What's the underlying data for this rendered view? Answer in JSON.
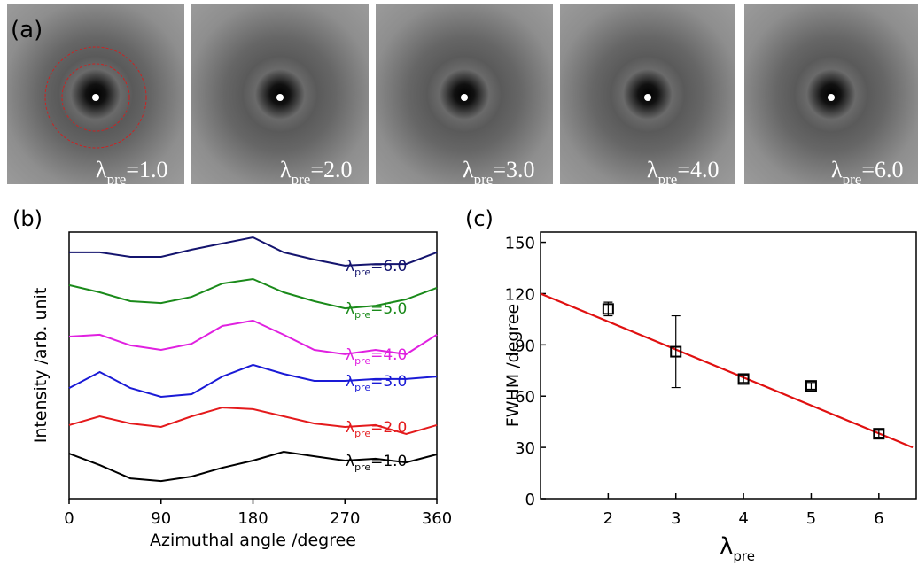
{
  "chart_data": [
    {
      "type": "image-grid",
      "panel_label": "(a)",
      "images": [
        {
          "label_parts": [
            "λ",
            "pre",
            "=1.0"
          ]
        },
        {
          "label_parts": [
            "λ",
            "pre",
            "=2.0"
          ]
        },
        {
          "label_parts": [
            "λ",
            "pre",
            "=3.0"
          ]
        },
        {
          "label_parts": [
            "λ",
            "pre",
            "=4.0"
          ]
        },
        {
          "label_parts": [
            "λ",
            "pre",
            "=6.0"
          ]
        }
      ]
    },
    {
      "type": "line",
      "panel_label": "(b)",
      "xlabel": "Azimuthal angle /degree",
      "ylabel": "Intensity /arb. unit",
      "x": [
        0,
        30,
        60,
        90,
        120,
        150,
        180,
        210,
        240,
        270,
        300,
        330,
        360
      ],
      "xlim": [
        0,
        360
      ],
      "xticks": [
        0,
        90,
        180,
        270,
        360
      ],
      "ylim": [
        0,
        10
      ],
      "series": [
        {
          "label_parts": [
            "λ",
            "pre",
            "=1.0"
          ],
          "color": "#000000",
          "values": [
            1.69,
            1.26,
            0.76,
            0.66,
            0.83,
            1.16,
            1.43,
            1.76,
            1.59,
            1.43,
            1.5,
            1.36,
            1.66
          ]
        },
        {
          "label_parts": [
            "λ",
            "pre",
            "=2.0"
          ],
          "color": "#e41a1c",
          "values": [
            2.76,
            3.09,
            2.82,
            2.69,
            3.09,
            3.42,
            3.36,
            3.09,
            2.82,
            2.69,
            2.76,
            2.43,
            2.76
          ]
        },
        {
          "label_parts": [
            "λ",
            "pre",
            "=3.0"
          ],
          "color": "#1a1ad6",
          "values": [
            4.15,
            4.75,
            4.15,
            3.82,
            3.92,
            4.58,
            5.02,
            4.68,
            4.42,
            4.42,
            4.49,
            4.49,
            4.58
          ]
        },
        {
          "label_parts": [
            "λ",
            "pre",
            "=4.0"
          ],
          "color": "#e020e0",
          "values": [
            6.08,
            6.15,
            5.75,
            5.58,
            5.81,
            6.48,
            6.68,
            6.15,
            5.58,
            5.42,
            5.58,
            5.42,
            6.15
          ]
        },
        {
          "label_parts": [
            "λ",
            "pre",
            "=5.0"
          ],
          "color": "#1a8a1a",
          "values": [
            8.01,
            7.74,
            7.41,
            7.34,
            7.57,
            8.07,
            8.24,
            7.74,
            7.41,
            7.14,
            7.24,
            7.48,
            7.91
          ]
        },
        {
          "label_parts": [
            "λ",
            "pre",
            "=6.0"
          ],
          "color": "#14146e",
          "values": [
            9.24,
            9.24,
            9.07,
            9.07,
            9.34,
            9.57,
            9.8,
            9.24,
            8.97,
            8.74,
            8.8,
            8.8,
            9.24
          ]
        }
      ]
    },
    {
      "type": "scatter",
      "panel_label": "(c)",
      "ylabel": "FWHM /degree",
      "xlabel_parts": [
        "λ",
        "pre"
      ],
      "x": [
        2,
        3,
        4,
        5,
        6
      ],
      "values": [
        111,
        86,
        70,
        66,
        38
      ],
      "errors": [
        4,
        21,
        2,
        2,
        2
      ],
      "color": "#000000",
      "xlim": [
        1,
        6.5
      ],
      "xticks": [
        2,
        3,
        4,
        5,
        6
      ],
      "ylim": [
        0,
        156
      ],
      "yticks": [
        0,
        30,
        60,
        90,
        120,
        150
      ],
      "fit_line": {
        "x": [
          1,
          6.5
        ],
        "y": [
          120,
          30
        ],
        "color": "#e01010"
      }
    }
  ]
}
